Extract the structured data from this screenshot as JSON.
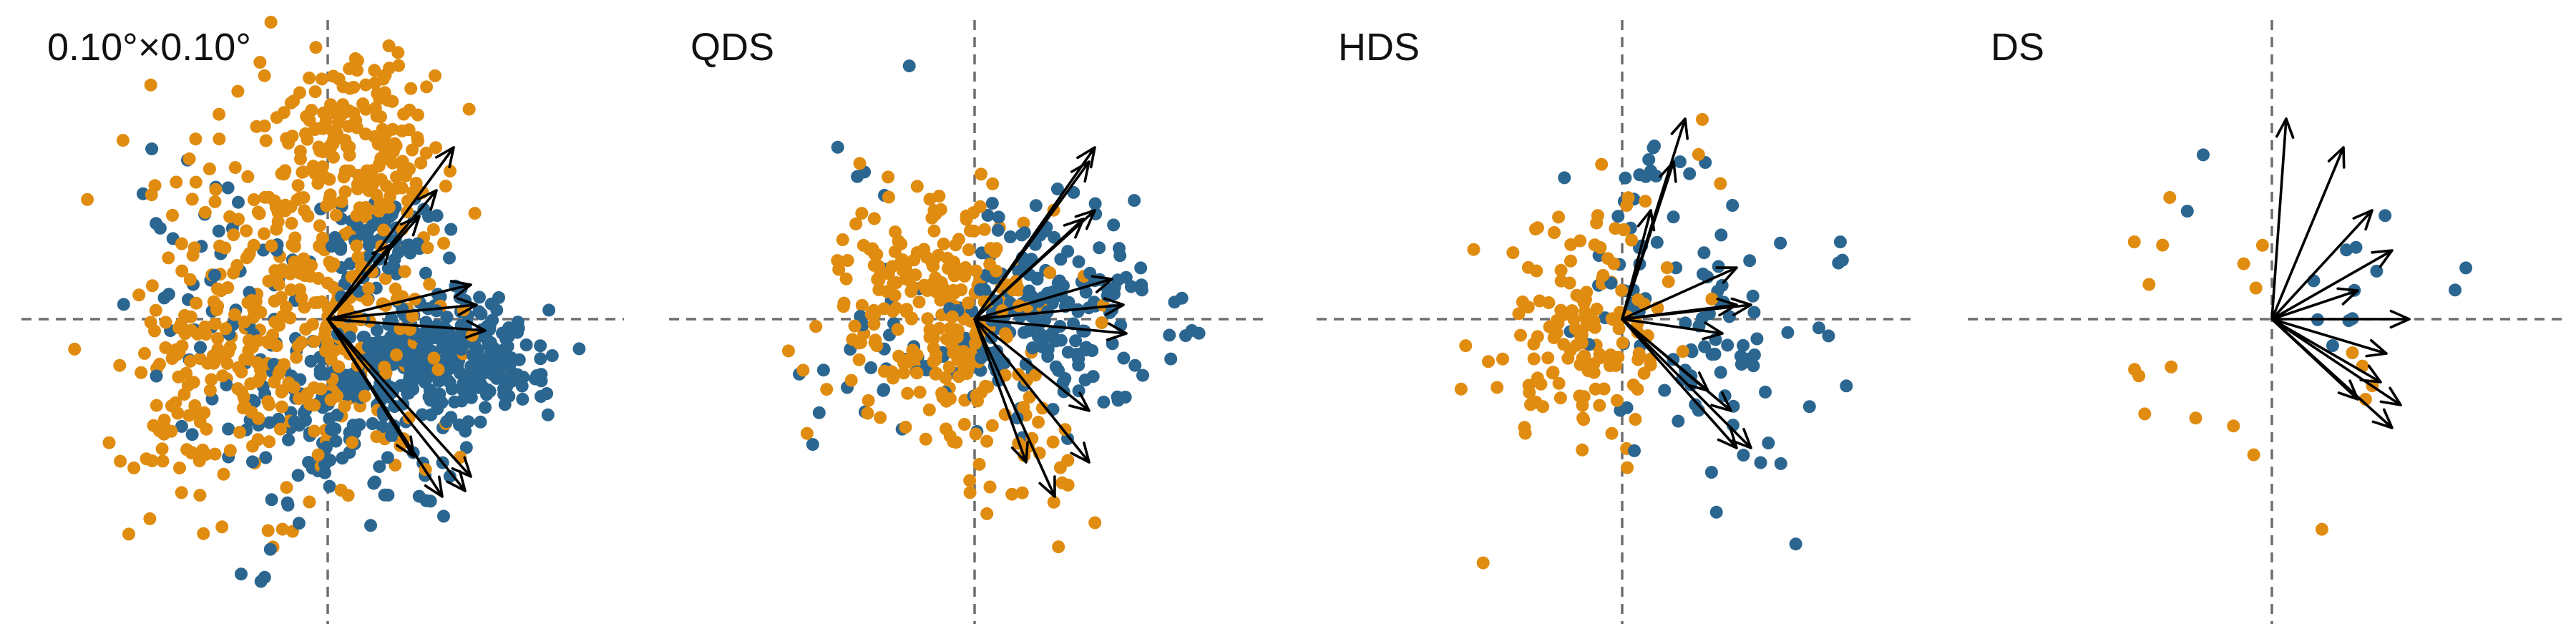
{
  "chart_data": [
    {
      "type": "scatter",
      "title": "0.10°×0.10°",
      "axes": {
        "x_zero_line": true,
        "y_zero_line": true,
        "ticks_shown": false,
        "grid": false
      },
      "series": [
        {
          "color": "#2b6690",
          "clusters": [
            {
              "cx": 0.38,
              "cy": -0.14,
              "sx": 0.18,
              "sy": 0.1,
              "n": 340
            },
            {
              "cx": 0.08,
              "cy": -0.38,
              "sx": 0.2,
              "sy": 0.14,
              "n": 120
            },
            {
              "cx": 0.18,
              "cy": 0.26,
              "sx": 0.12,
              "sy": 0.1,
              "n": 70
            },
            {
              "cx": -0.35,
              "cy": 0.05,
              "sx": 0.18,
              "sy": 0.28,
              "n": 60
            },
            {
              "cx": -0.25,
              "cy": -0.75,
              "sx": 0.12,
              "sy": 0.12,
              "n": 6
            }
          ]
        },
        {
          "color": "#e08c10",
          "clusters": [
            {
              "cx": -0.12,
              "cy": 0.05,
              "sx": 0.24,
              "sy": 0.35,
              "n": 380
            },
            {
              "cx": 0.12,
              "cy": 0.62,
              "sx": 0.16,
              "sy": 0.15,
              "n": 150
            },
            {
              "cx": -0.45,
              "cy": -0.25,
              "sx": 0.15,
              "sy": 0.25,
              "n": 50
            },
            {
              "cx": -0.7,
              "cy": -0.48,
              "sx": 0.04,
              "sy": 0.03,
              "n": 2
            }
          ]
        }
      ],
      "arrows": [
        [
          0.44,
          0.6
        ],
        [
          0.38,
          0.45
        ],
        [
          0.32,
          0.36
        ],
        [
          0.22,
          0.26
        ],
        [
          0.5,
          0.12
        ],
        [
          0.52,
          0.05
        ],
        [
          0.55,
          -0.04
        ],
        [
          0.5,
          -0.55
        ],
        [
          0.48,
          -0.6
        ],
        [
          0.4,
          -0.62
        ],
        [
          0.3,
          -0.48
        ]
      ]
    },
    {
      "type": "scatter",
      "title": "QDS",
      "axes": {
        "x_zero_line": true,
        "y_zero_line": true,
        "ticks_shown": false,
        "grid": false
      },
      "series": [
        {
          "color": "#2b6690",
          "clusters": [
            {
              "cx": 0.25,
              "cy": 0.03,
              "sx": 0.2,
              "sy": 0.18,
              "n": 190
            },
            {
              "cx": -0.2,
              "cy": -0.15,
              "sx": 0.25,
              "sy": 0.15,
              "n": 40
            },
            {
              "cx": -0.4,
              "cy": 0.5,
              "sx": 0.1,
              "sy": 0.05,
              "n": 4
            },
            {
              "cx": -0.2,
              "cy": 0.85,
              "sx": 0.02,
              "sy": 0.02,
              "n": 1
            }
          ]
        },
        {
          "color": "#e08c10",
          "clusters": [
            {
              "cx": -0.1,
              "cy": 0.0,
              "sx": 0.17,
              "sy": 0.2,
              "n": 240
            },
            {
              "cx": 0.12,
              "cy": -0.5,
              "sx": 0.12,
              "sy": 0.12,
              "n": 28
            },
            {
              "cx": -0.3,
              "cy": 0.35,
              "sx": 0.1,
              "sy": 0.1,
              "n": 18
            },
            {
              "cx": -0.62,
              "cy": -0.17,
              "sx": 0.03,
              "sy": 0.03,
              "n": 1
            }
          ]
        }
      ],
      "arrows": [
        [
          0.42,
          0.6
        ],
        [
          0.4,
          0.55
        ],
        [
          0.38,
          0.35
        ],
        [
          0.42,
          0.38
        ],
        [
          0.48,
          0.14
        ],
        [
          0.52,
          0.05
        ],
        [
          0.53,
          -0.05
        ],
        [
          0.4,
          -0.32
        ],
        [
          0.4,
          -0.5
        ],
        [
          0.28,
          -0.62
        ],
        [
          0.18,
          -0.5
        ]
      ]
    },
    {
      "type": "scatter",
      "title": "HDS",
      "axes": {
        "x_zero_line": true,
        "y_zero_line": true,
        "ticks_shown": false,
        "grid": false
      },
      "series": [
        {
          "color": "#2b6690",
          "clusters": [
            {
              "cx": 0.25,
              "cy": -0.05,
              "sx": 0.18,
              "sy": 0.22,
              "n": 80
            },
            {
              "cx": 0.1,
              "cy": 0.45,
              "sx": 0.08,
              "sy": 0.1,
              "n": 15
            },
            {
              "cx": 0.55,
              "cy": -0.5,
              "sx": 0.05,
              "sy": 0.05,
              "n": 3
            },
            {
              "cx": 0.62,
              "cy": -0.8,
              "sx": 0.02,
              "sy": 0.02,
              "n": 1
            },
            {
              "cx": 0.75,
              "cy": 0.2,
              "sx": 0.05,
              "sy": 0.05,
              "n": 3
            }
          ]
        },
        {
          "color": "#e08c10",
          "clusters": [
            {
              "cx": -0.15,
              "cy": -0.05,
              "sx": 0.17,
              "sy": 0.2,
              "n": 140
            },
            {
              "cx": 0.15,
              "cy": 0.3,
              "sx": 0.1,
              "sy": 0.2,
              "n": 12
            },
            {
              "cx": -0.5,
              "cy": -0.85,
              "sx": 0.02,
              "sy": 0.02,
              "n": 1
            }
          ]
        }
      ],
      "arrows": [
        [
          0.22,
          0.7
        ],
        [
          0.18,
          0.55
        ],
        [
          0.1,
          0.38
        ],
        [
          0.4,
          0.18
        ],
        [
          0.4,
          0.05
        ],
        [
          0.45,
          0.05
        ],
        [
          0.35,
          -0.05
        ],
        [
          0.3,
          -0.25
        ],
        [
          0.38,
          -0.32
        ],
        [
          0.4,
          -0.45
        ],
        [
          0.45,
          -0.45
        ]
      ]
    },
    {
      "type": "scatter",
      "title": "DS",
      "axes": {
        "x_zero_line": true,
        "y_zero_line": true,
        "ticks_shown": false,
        "grid": false
      },
      "series": [
        {
          "color": "#2b6690",
          "clusters": [
            {
              "cx": 0.32,
              "cy": 0.1,
              "sx": 0.12,
              "sy": 0.12,
              "n": 10
            },
            {
              "cx": -0.22,
              "cy": 0.65,
              "sx": 0.05,
              "sy": 0.12,
              "n": 2
            },
            {
              "cx": 0.65,
              "cy": 0.12,
              "sx": 0.04,
              "sy": 0.04,
              "n": 2
            }
          ]
        },
        {
          "color": "#e08c10",
          "clusters": [
            {
              "cx": -0.3,
              "cy": -0.1,
              "sx": 0.2,
              "sy": 0.25,
              "n": 14
            },
            {
              "cx": 0.35,
              "cy": -0.2,
              "sx": 0.06,
              "sy": 0.06,
              "n": 4
            },
            {
              "cx": 0.15,
              "cy": -0.75,
              "sx": 0.02,
              "sy": 0.02,
              "n": 1
            }
          ]
        }
      ],
      "arrows": [
        [
          0.05,
          0.7
        ],
        [
          0.25,
          0.6
        ],
        [
          0.35,
          0.38
        ],
        [
          0.42,
          0.24
        ],
        [
          0.3,
          0.1
        ],
        [
          0.48,
          0.0
        ],
        [
          0.4,
          -0.12
        ],
        [
          0.38,
          -0.22
        ],
        [
          0.45,
          -0.3
        ],
        [
          0.42,
          -0.38
        ],
        [
          0.3,
          -0.28
        ]
      ]
    }
  ]
}
